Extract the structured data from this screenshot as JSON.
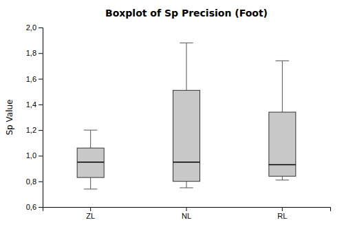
{
  "chart_data": {
    "type": "box",
    "title": "Boxplot of Sp Precision (Foot)",
    "ylabel": "Sp Value",
    "categories": [
      "ZL",
      "NL",
      "RL"
    ],
    "boxes": [
      {
        "whisker_low": 0.74,
        "q1": 0.83,
        "median": 0.95,
        "q3": 1.06,
        "whisker_high": 1.2
      },
      {
        "whisker_low": 0.75,
        "q1": 0.8,
        "median": 0.95,
        "q3": 1.51,
        "whisker_high": 1.88
      },
      {
        "whisker_low": 0.81,
        "q1": 0.84,
        "median": 0.93,
        "q3": 1.34,
        "whisker_high": 1.74
      }
    ],
    "ylim": [
      0.6,
      2.0
    ],
    "yticks": [
      {
        "value": 0.6,
        "label": "0,6"
      },
      {
        "value": 0.8,
        "label": "0,8"
      },
      {
        "value": 1.0,
        "label": "1,0"
      },
      {
        "value": 1.2,
        "label": "1,2"
      },
      {
        "value": 1.4,
        "label": "1,4"
      },
      {
        "value": 1.6,
        "label": "1,6"
      },
      {
        "value": 1.8,
        "label": "1,8"
      },
      {
        "value": 2.0,
        "label": "2,0"
      }
    ],
    "color": "#c8c8c8",
    "grid": false
  }
}
